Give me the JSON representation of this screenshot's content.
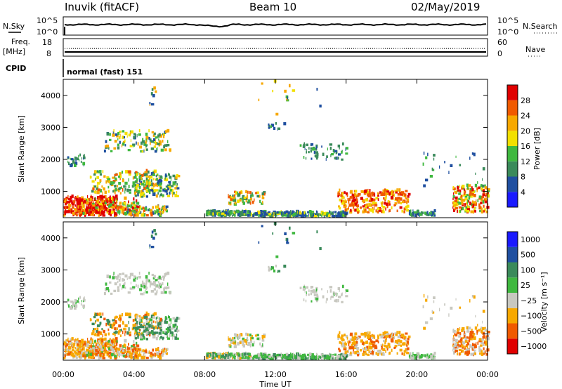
{
  "header": {
    "station": "Inuvik (fitACF)",
    "beam": "Beam 10",
    "date": "02/May/2019"
  },
  "top_panel": {
    "nsky_label": "N.Sky",
    "nsearch_label": "N.Search",
    "left_ticks": [
      "10^5",
      "10^0"
    ],
    "right_ticks": [
      "10^5",
      "10^0"
    ]
  },
  "freq_panel": {
    "freq_label": "Freq.",
    "freq_unit": "[MHz]",
    "nave_label": "Nave",
    "left_ticks": [
      "18",
      "8"
    ],
    "right_ticks": [
      "60",
      "0"
    ]
  },
  "cpid_panel": {
    "label": "CPID",
    "program": "normal (fast) 151"
  },
  "colors": {
    "power": [
      "#1a1aff",
      "#1f4fa0",
      "#3a8a5a",
      "#3fb83f",
      "#f2e000",
      "#f7a800",
      "#f05a00",
      "#e00000"
    ],
    "velocity": [
      "#e00000",
      "#f05a00",
      "#f7a800",
      "#c8c8c0",
      "#3fb83f",
      "#3a8a5a",
      "#1f4fa0",
      "#1a1aff"
    ]
  },
  "chart_data": [
    {
      "type": "heatmap",
      "name": "Power",
      "xlabel": "Time UT",
      "ylabel": "Slant Range [km]",
      "x_ticks": [
        "00:00",
        "04:00",
        "08:00",
        "12:00",
        "16:00",
        "20:00",
        "00:00"
      ],
      "y_ticks": [
        "1000",
        "2000",
        "3000",
        "4000"
      ],
      "ylim": [
        180,
        4500
      ],
      "colorbar": {
        "label": "Power [dB]",
        "ticks": [
          "4",
          "8",
          "12",
          "16",
          "20",
          "24",
          "28"
        ]
      }
    },
    {
      "type": "heatmap",
      "name": "Velocity",
      "xlabel": "Time UT",
      "ylabel": "Slant Range [km]",
      "x_ticks": [
        "00:00",
        "04:00",
        "08:00",
        "12:00",
        "16:00",
        "20:00",
        "00:00"
      ],
      "y_ticks": [
        "1000",
        "2000",
        "3000",
        "4000"
      ],
      "ylim": [
        180,
        4500
      ],
      "colorbar": {
        "label": "Velocity [m s⁻¹]",
        "ticks": [
          "1000",
          "500",
          "100",
          "25",
          "−25",
          "−100",
          "−500",
          "−1000"
        ]
      }
    }
  ]
}
